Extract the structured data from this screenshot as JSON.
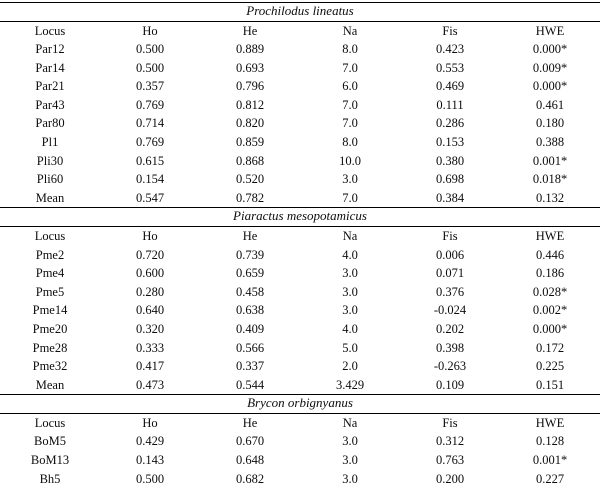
{
  "table": {
    "columns": [
      "Locus",
      "Ho",
      "He",
      "Na",
      "Fis",
      "HWE"
    ],
    "sections": [
      {
        "species": "Prochilodus lineatus",
        "rows": [
          [
            "Par12",
            "0.500",
            "0.889",
            "8.0",
            "0.423",
            "0.000*"
          ],
          [
            "Par14",
            "0.500",
            "0.693",
            "7.0",
            "0.553",
            "0.009*"
          ],
          [
            "Par21",
            "0.357",
            "0.796",
            "6.0",
            "0.469",
            "0.000*"
          ],
          [
            "Par43",
            "0.769",
            "0.812",
            "7.0",
            "0.111",
            "0.461"
          ],
          [
            "Par80",
            "0.714",
            "0.820",
            "7.0",
            "0.286",
            "0.180"
          ],
          [
            "Pl1",
            "0.769",
            "0.859",
            "8.0",
            "0.153",
            "0.388"
          ],
          [
            "Pli30",
            "0.615",
            "0.868",
            "10.0",
            "0.380",
            "0.001*"
          ],
          [
            "Pli60",
            "0.154",
            "0.520",
            "3.0",
            "0.698",
            "0.018*"
          ],
          [
            "Mean",
            "0.547",
            "0.782",
            "7.0",
            "0.384",
            "0.132"
          ]
        ]
      },
      {
        "species": "Piaractus mesopotamicus",
        "rows": [
          [
            "Pme2",
            "0.720",
            "0.739",
            "4.0",
            "0.006",
            "0.446"
          ],
          [
            "Pme4",
            "0.600",
            "0.659",
            "3.0",
            "0.071",
            "0.186"
          ],
          [
            "Pme5",
            "0.280",
            "0.458",
            "3.0",
            "0.376",
            "0.028*"
          ],
          [
            "Pme14",
            "0.640",
            "0.638",
            "3.0",
            "-0.024",
            "0.002*"
          ],
          [
            "Pme20",
            "0.320",
            "0.409",
            "4.0",
            "0.202",
            "0.000*"
          ],
          [
            "Pme28",
            "0.333",
            "0.566",
            "5.0",
            "0.398",
            "0.172"
          ],
          [
            "Pme32",
            "0.417",
            "0.337",
            "2.0",
            "-0.263",
            "0.225"
          ],
          [
            "Mean",
            "0.473",
            "0.544",
            "3.429",
            "0.109",
            "0.151"
          ]
        ]
      },
      {
        "species": "Brycon orbignyanus",
        "rows": [
          [
            "BoM5",
            "0.429",
            "0.670",
            "3.0",
            "0.312",
            "0.128"
          ],
          [
            "BoM13",
            "0.143",
            "0.648",
            "3.0",
            "0.763",
            "0.001*"
          ],
          [
            "Bh5",
            "0.500",
            "0.682",
            "3.0",
            "0.200",
            "0.227"
          ]
        ]
      }
    ]
  }
}
